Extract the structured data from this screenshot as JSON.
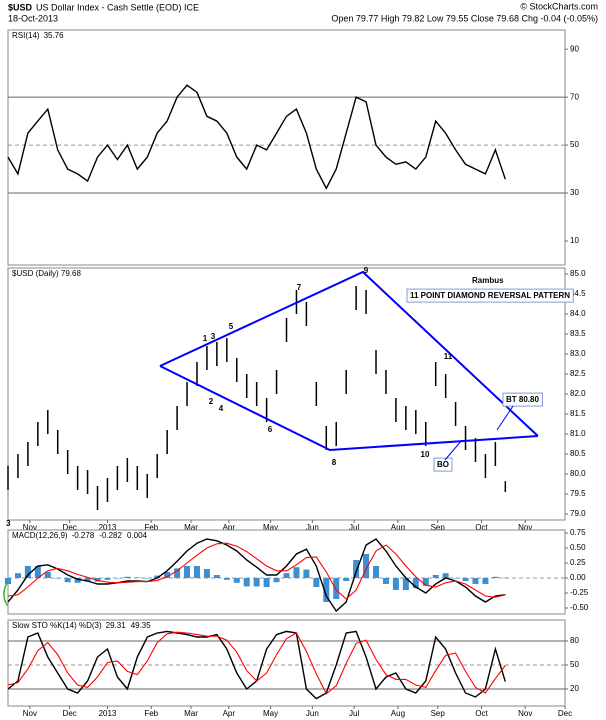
{
  "header": {
    "symbol": "$USD",
    "name": "US Dollar Index - Cash Settle (EOD) ICE",
    "date": "18-Oct-2013",
    "quote": "Open 79.77 High 79.82 Low 79.55 Close 79.68 Chg -0.04 (-0.05%)",
    "credit": "© StockCharts.com"
  },
  "chart_data": [
    {
      "type": "line",
      "label": "RSI(14)",
      "legend_values": true,
      "x": [
        0,
        2.5,
        5,
        7.5,
        10,
        12.5,
        15,
        17.5,
        20,
        22.5,
        25,
        27.5,
        30,
        32.5,
        35,
        37.5,
        40,
        42.5,
        45,
        47.5,
        50,
        52.5,
        55,
        57.5,
        60,
        62.5,
        65,
        67.5,
        70,
        72.5,
        75,
        77.5,
        80,
        82.5,
        85,
        87.5,
        90,
        92.5,
        95,
        97.5,
        100,
        102.5,
        105,
        107.5,
        110,
        112.5,
        115,
        117.5,
        120,
        122.5,
        125
      ],
      "series": [
        {
          "name": "RSI",
          "color": "#000000",
          "values": [
            45,
            38,
            55,
            60,
            65,
            48,
            40,
            38,
            35,
            45,
            50,
            44,
            50,
            40,
            45,
            55,
            60,
            70,
            75,
            72,
            62,
            60,
            55,
            45,
            40,
            50,
            48,
            55,
            62,
            65,
            55,
            40,
            32,
            40,
            55,
            70,
            68,
            50,
            45,
            42,
            43,
            40,
            45,
            60,
            55,
            48,
            42,
            40,
            38,
            48,
            35.76
          ]
        }
      ],
      "xlim": [
        0,
        140
      ],
      "ylim": [
        0,
        98
      ],
      "yticks": [
        10,
        30,
        50,
        70,
        90
      ],
      "hlines": [
        {
          "value": 70,
          "dashed": false
        },
        {
          "value": 50,
          "dashed": true
        },
        {
          "value": 30,
          "dashed": false
        }
      ]
    },
    {
      "type": "range-bar",
      "label": "$USD (Daily) 79.68",
      "color": "#000000",
      "corner_label": "3",
      "x": [
        0,
        2.5,
        5,
        7.5,
        10,
        12.5,
        15,
        17.5,
        20,
        22.5,
        25,
        27.5,
        30,
        32.5,
        35,
        37.5,
        40,
        42.5,
        45,
        47.5,
        50,
        52.5,
        55,
        57.5,
        60,
        62.5,
        65,
        67.5,
        70,
        72.5,
        75,
        77.5,
        80,
        82.5,
        85,
        87.5,
        90,
        92.5,
        95,
        97.5,
        100,
        102.5,
        105,
        107.5,
        110,
        112.5,
        115,
        117.5,
        120,
        122.5,
        125
      ],
      "high": [
        80.2,
        80.5,
        80.8,
        81.3,
        81.6,
        81.1,
        80.6,
        80.2,
        80.1,
        79.7,
        79.9,
        80.2,
        80.4,
        80.2,
        80.0,
        80.5,
        81.1,
        81.7,
        82.3,
        82.8,
        83.2,
        83.3,
        83.4,
        82.9,
        82.5,
        82.3,
        81.9,
        82.6,
        83.9,
        84.6,
        84.3,
        82.3,
        81.2,
        81.3,
        82.6,
        84.7,
        84.6,
        83.1,
        82.6,
        81.9,
        81.7,
        81.6,
        81.3,
        82.8,
        82.5,
        81.8,
        81.2,
        80.9,
        80.5,
        80.8,
        79.82
      ],
      "low": [
        79.6,
        79.9,
        80.2,
        80.7,
        81.0,
        80.5,
        80.0,
        79.6,
        79.5,
        79.1,
        79.3,
        79.6,
        79.8,
        79.6,
        79.4,
        79.9,
        80.5,
        81.1,
        81.7,
        82.2,
        82.6,
        82.7,
        82.8,
        82.3,
        81.9,
        81.7,
        81.3,
        82.0,
        83.3,
        84.0,
        83.7,
        81.7,
        80.6,
        80.7,
        82.0,
        84.1,
        84.0,
        82.5,
        82.0,
        81.3,
        81.1,
        81.0,
        80.7,
        82.2,
        81.9,
        81.2,
        80.6,
        80.3,
        79.9,
        80.2,
        79.55
      ],
      "xlim": [
        0,
        140
      ],
      "ylim": [
        78.85,
        85.15
      ],
      "yticks": [
        {
          "value": 79,
          "label": "79.0"
        },
        79.5,
        {
          "value": 80,
          "label": "80.0"
        },
        80.5,
        {
          "value": 81,
          "label": "81.0"
        },
        81.5,
        {
          "value": 82,
          "label": "82.0"
        },
        82.5,
        {
          "value": 83,
          "label": "83.0"
        },
        83.5,
        {
          "value": 84,
          "label": "84.0"
        },
        84.5,
        {
          "value": 85,
          "label": "85.0"
        }
      ],
      "xticks": [
        {
          "value": 5.5,
          "label": "Nov"
        },
        {
          "value": 15.5,
          "label": "Dec"
        },
        {
          "value": 25,
          "label": "2013"
        },
        {
          "value": 36,
          "label": "Feb"
        },
        {
          "value": 46,
          "label": "Mar"
        },
        {
          "value": 55.5,
          "label": "Apr"
        },
        {
          "value": 66,
          "label": "May"
        },
        {
          "value": 76.5,
          "label": "Jun"
        },
        {
          "value": 87,
          "label": "Jul"
        },
        {
          "value": 98,
          "label": "Aug"
        },
        {
          "value": 108,
          "label": "Sep"
        },
        {
          "value": 119,
          "label": "Oct"
        },
        {
          "value": 130,
          "label": "Nov"
        }
      ],
      "trend_color": "#0000ff",
      "trendlines": [
        {
          "x": [
            38.2,
            89.2,
            133.2
          ],
          "y": [
            82.7,
            85.05,
            80.95
          ]
        },
        {
          "x": [
            38.2,
            80.9,
            133.2
          ],
          "y": [
            82.7,
            80.6,
            80.95
          ]
        }
      ],
      "annotations": [
        "Rambus",
        "11 POINT DIAMOND  REVERSAL PATTERN",
        "BT 80.80",
        "BO"
      ],
      "wave_labels": [
        "1",
        "2",
        "3",
        "4",
        "5",
        "6",
        "7",
        "8",
        "9",
        "10",
        "11"
      ]
    },
    {
      "type": "line",
      "label": "MACD(12,26,9)",
      "legend_values": true,
      "x": [
        0,
        2.5,
        5,
        7.5,
        10,
        12.5,
        15,
        17.5,
        20,
        22.5,
        25,
        27.5,
        30,
        32.5,
        35,
        37.5,
        40,
        42.5,
        45,
        47.5,
        50,
        52.5,
        55,
        57.5,
        60,
        62.5,
        65,
        67.5,
        70,
        72.5,
        75,
        77.5,
        80,
        82.5,
        85,
        87.5,
        90,
        92.5,
        95,
        97.5,
        100,
        102.5,
        105,
        107.5,
        110,
        112.5,
        115,
        117.5,
        120,
        122.5,
        125
      ],
      "series": [
        {
          "name": "MACD",
          "color": "#000000",
          "values": [
            -0.4,
            -0.2,
            0.05,
            0.2,
            0.22,
            0.15,
            0.05,
            -0.02,
            -0.05,
            -0.1,
            -0.1,
            -0.08,
            -0.05,
            -0.05,
            -0.06,
            0.0,
            0.12,
            0.28,
            0.45,
            0.58,
            0.65,
            0.62,
            0.55,
            0.45,
            0.3,
            0.18,
            0.05,
            0.05,
            0.2,
            0.4,
            0.48,
            0.2,
            -0.3,
            -0.55,
            -0.4,
            0.1,
            0.55,
            0.65,
            0.45,
            0.2,
            0.0,
            -0.15,
            -0.25,
            -0.1,
            0.0,
            -0.05,
            -0.15,
            -0.3,
            -0.4,
            -0.3,
            -0.278
          ]
        },
        {
          "name": "Signal",
          "color": "#ff0000",
          "values": [
            -0.3,
            -0.28,
            -0.15,
            0.0,
            0.12,
            0.16,
            0.12,
            0.06,
            0.01,
            -0.04,
            -0.07,
            -0.08,
            -0.07,
            -0.06,
            -0.06,
            -0.04,
            0.02,
            0.12,
            0.25,
            0.38,
            0.5,
            0.57,
            0.58,
            0.53,
            0.44,
            0.32,
            0.2,
            0.12,
            0.12,
            0.22,
            0.34,
            0.35,
            0.1,
            -0.2,
            -0.35,
            -0.2,
            0.15,
            0.45,
            0.55,
            0.4,
            0.2,
            0.02,
            -0.12,
            -0.15,
            -0.08,
            -0.05,
            -0.1,
            -0.2,
            -0.3,
            -0.32,
            -0.282
          ]
        },
        {
          "name": "Histogram",
          "color": "#3d8fd1",
          "style": "histogram",
          "values": [
            -0.1,
            0.08,
            0.2,
            0.2,
            0.1,
            -0.01,
            -0.07,
            -0.08,
            -0.06,
            -0.06,
            -0.03,
            0.0,
            0.02,
            0.01,
            0.0,
            0.04,
            0.1,
            0.16,
            0.2,
            0.2,
            0.15,
            0.05,
            -0.03,
            -0.08,
            -0.14,
            -0.14,
            -0.15,
            -0.07,
            0.08,
            0.18,
            0.14,
            -0.15,
            -0.4,
            -0.35,
            -0.05,
            0.3,
            0.4,
            0.2,
            -0.1,
            -0.2,
            -0.2,
            -0.17,
            -0.13,
            0.05,
            0.08,
            0.0,
            -0.05,
            -0.1,
            -0.1,
            0.02,
            0.004
          ]
        }
      ],
      "xlim": [
        0,
        140
      ],
      "ylim": [
        -0.6,
        0.8
      ],
      "yticks": [
        {
          "value": -0.5,
          "label": "-0.50"
        },
        -0.25,
        {
          "value": 0,
          "label": "0.00"
        },
        0.25,
        {
          "value": 0.5,
          "label": "0.50"
        },
        0.75
      ],
      "hlines": [
        {
          "value": 0,
          "dashed": true
        }
      ]
    },
    {
      "type": "line",
      "label": "Slow STO %K(14) %D(3)",
      "legend_values": true,
      "x": [
        0,
        2.5,
        5,
        7.5,
        10,
        12.5,
        15,
        17.5,
        20,
        22.5,
        25,
        27.5,
        30,
        32.5,
        35,
        37.5,
        40,
        42.5,
        45,
        47.5,
        50,
        52.5,
        55,
        57.5,
        60,
        62.5,
        65,
        67.5,
        70,
        72.5,
        75,
        77.5,
        80,
        82.5,
        85,
        87.5,
        90,
        92.5,
        95,
        97.5,
        100,
        102.5,
        105,
        107.5,
        110,
        112.5,
        115,
        117.5,
        120,
        122.5,
        125
      ],
      "series": [
        {
          "name": "%K",
          "color": "#000000",
          "values": [
            20,
            30,
            85,
            90,
            60,
            40,
            20,
            15,
            30,
            60,
            70,
            35,
            20,
            60,
            85,
            90,
            92,
            90,
            88,
            85,
            85,
            88,
            70,
            40,
            20,
            30,
            70,
            88,
            92,
            90,
            20,
            8,
            15,
            50,
            90,
            92,
            60,
            20,
            35,
            40,
            20,
            15,
            30,
            85,
            70,
            40,
            15,
            10,
            20,
            70,
            29.31
          ]
        },
        {
          "name": "%D",
          "color": "#ff0000",
          "values": [
            25,
            28,
            45,
            68,
            78,
            63,
            40,
            25,
            22,
            35,
            53,
            55,
            42,
            38,
            55,
            78,
            89,
            91,
            90,
            88,
            86,
            86,
            81,
            66,
            43,
            30,
            40,
            63,
            83,
            90,
            67,
            39,
            14,
            24,
            52,
            77,
            81,
            57,
            38,
            32,
            32,
            25,
            22,
            43,
            62,
            65,
            42,
            22,
            15,
            33,
            49.35
          ]
        }
      ],
      "xlim": [
        0,
        140
      ],
      "ylim": [
        -1.25,
        106.25
      ],
      "yticks": [
        20,
        50,
        80
      ],
      "xticks": [
        {
          "value": 5.5,
          "label": "Nov"
        },
        {
          "value": 15.5,
          "label": "Dec"
        },
        {
          "value": 25,
          "label": "2013"
        },
        {
          "value": 36,
          "label": "Feb"
        },
        {
          "value": 46,
          "label": "Mar"
        },
        {
          "value": 55.5,
          "label": "Apr"
        },
        {
          "value": 66,
          "label": "May"
        },
        {
          "value": 76.5,
          "label": "Jun"
        },
        {
          "value": 87,
          "label": "Jul"
        },
        {
          "value": 98,
          "label": "Aug"
        },
        {
          "value": 108,
          "label": "Sep"
        },
        {
          "value": 119,
          "label": "Oct"
        },
        {
          "value": 130,
          "label": "Nov"
        },
        {
          "value": 140,
          "label": "Dec"
        }
      ],
      "hlines": [
        {
          "value": 80,
          "dashed": false
        },
        {
          "value": 50,
          "dashed": true
        },
        {
          "value": 20,
          "dashed": false
        }
      ]
    }
  ]
}
